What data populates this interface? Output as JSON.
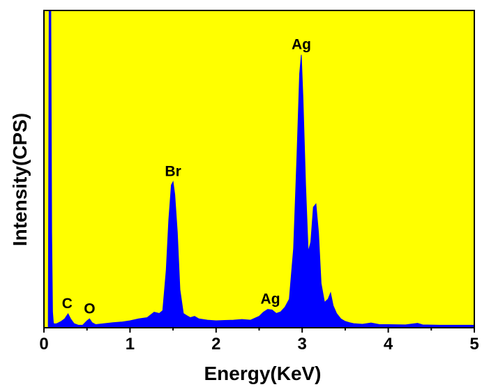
{
  "chart_data": {
    "type": "area",
    "title": "",
    "xlabel": "Energy(KeV)",
    "ylabel": "Intensity(CPS)",
    "xlim": [
      0,
      5
    ],
    "ylim": [
      0,
      100
    ],
    "xticks": [
      "0",
      "1",
      "2",
      "3",
      "4",
      "5"
    ],
    "yticks_visible": false,
    "grid": false,
    "legend": "none",
    "colors": {
      "plot_background": "#FFFF00",
      "fill": "#0000FF",
      "axes": "#000000"
    },
    "series": [
      {
        "x": [
          0.0,
          0.05,
          0.06,
          0.07,
          0.08,
          0.09,
          0.1,
          0.11,
          0.12,
          0.15,
          0.2,
          0.24,
          0.28,
          0.31,
          0.35,
          0.4,
          0.45,
          0.5,
          0.53,
          0.56,
          0.6,
          0.7,
          0.8,
          0.9,
          1.0,
          1.1,
          1.2,
          1.28,
          1.34,
          1.38,
          1.42,
          1.45,
          1.48,
          1.5,
          1.52,
          1.55,
          1.58,
          1.62,
          1.66,
          1.7,
          1.75,
          1.8,
          1.9,
          2.0,
          2.1,
          2.2,
          2.3,
          2.4,
          2.5,
          2.55,
          2.6,
          2.65,
          2.7,
          2.75,
          2.8,
          2.85,
          2.9,
          2.94,
          2.97,
          2.99,
          3.01,
          3.04,
          3.07,
          3.1,
          3.13,
          3.16,
          3.19,
          3.22,
          3.26,
          3.3,
          3.33,
          3.36,
          3.4,
          3.45,
          3.5,
          3.55,
          3.6,
          3.7,
          3.8,
          3.9,
          4.0,
          4.2,
          4.34,
          4.4,
          4.6,
          4.8,
          5.0
        ],
        "y": [
          0,
          0,
          100,
          100,
          100,
          30,
          5,
          1.5,
          1.2,
          1.3,
          2,
          2.8,
          4.4,
          2.8,
          1.3,
          0.8,
          0.8,
          2.2,
          2.8,
          1.6,
          1,
          1.3,
          1.6,
          1.8,
          2.2,
          2.8,
          3.2,
          4.9,
          4.5,
          5.4,
          18,
          34,
          45,
          46,
          42,
          30,
          12,
          4.5,
          3.8,
          3.2,
          3.6,
          2.8,
          2.4,
          2.2,
          2.3,
          2.4,
          2.6,
          2.4,
          3.6,
          4.9,
          5.8,
          5.6,
          4.5,
          5,
          6.5,
          9,
          25,
          55,
          80,
          86,
          72,
          45,
          24,
          27,
          38,
          39,
          30,
          14,
          8,
          9,
          11,
          7,
          4.5,
          2.8,
          2,
          1.6,
          1.3,
          1.1,
          1.5,
          1,
          1,
          0.9,
          1.4,
          0.9,
          0.8,
          0.8,
          0.8
        ]
      }
    ],
    "annotations": [
      {
        "text": "C",
        "x": 0.27,
        "y": 4.4
      },
      {
        "text": "O",
        "x": 0.53,
        "y": 2.8
      },
      {
        "text": "Br",
        "x": 1.5,
        "y": 46
      },
      {
        "text": "Ag",
        "x": 2.63,
        "y": 5.8
      },
      {
        "text": "Ag",
        "x": 2.99,
        "y": 86
      }
    ]
  }
}
